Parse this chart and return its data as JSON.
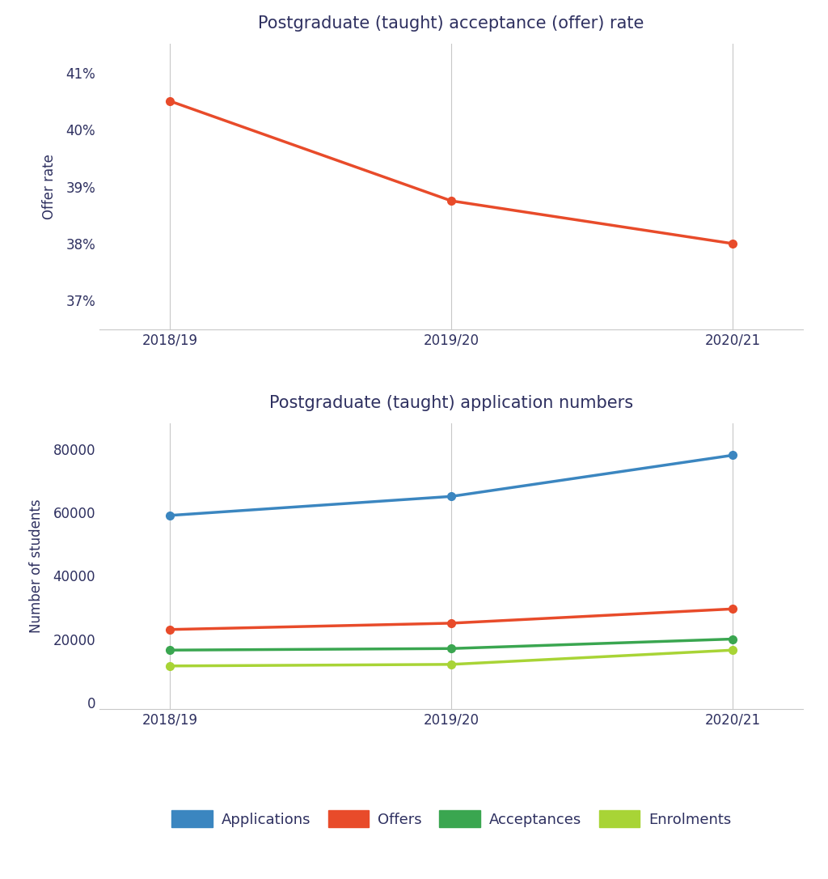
{
  "years": [
    "2018/19",
    "2019/20",
    "2020/21"
  ],
  "offer_rate": [
    40.5,
    38.75,
    38.0
  ],
  "applications": [
    59000,
    65000,
    78000
  ],
  "offers": [
    23000,
    25000,
    29500
  ],
  "acceptances": [
    16500,
    17000,
    20000
  ],
  "enrolments": [
    11500,
    12000,
    16500
  ],
  "title1": "Postgraduate (taught) acceptance (offer) rate",
  "title2": "Postgraduate (taught) application numbers",
  "ylabel1": "Offer rate",
  "ylabel2": "Number of students",
  "color_offers_rate": "#E84B2A",
  "color_applications": "#3B86C0",
  "color_offers": "#E84B2A",
  "color_acceptances": "#3AA650",
  "color_enrolments": "#A8D436",
  "ylim1": [
    36.5,
    41.5
  ],
  "yticks1": [
    37,
    38,
    39,
    40,
    41
  ],
  "ylim2": [
    -2000,
    88000
  ],
  "yticks2": [
    0,
    20000,
    40000,
    60000,
    80000
  ],
  "title_fontsize": 15,
  "label_fontsize": 12,
  "tick_fontsize": 12,
  "legend_fontsize": 13,
  "line_width": 2.5,
  "marker_size": 7,
  "background_color": "#FFFFFF",
  "title_color": "#2E3060",
  "axis_color": "#2E3060",
  "tick_color": "#2E3060"
}
